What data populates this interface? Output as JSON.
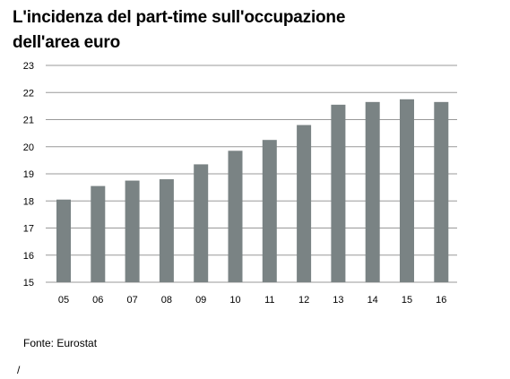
{
  "chart_data": {
    "type": "bar",
    "title_lines": [
      "L'incidenza del part-time sull'occupazione",
      "dell'area euro"
    ],
    "categories": [
      "05",
      "06",
      "07",
      "08",
      "09",
      "10",
      "11",
      "12",
      "13",
      "14",
      "15",
      "16"
    ],
    "values": [
      18.05,
      18.55,
      18.75,
      18.8,
      19.35,
      19.85,
      20.25,
      20.8,
      21.55,
      21.65,
      21.75,
      21.65
    ],
    "ylim": [
      15,
      23
    ],
    "yticks": [
      "15",
      "16",
      "17",
      "18",
      "19",
      "20",
      "21",
      "22",
      "23"
    ],
    "grid": true,
    "bar_color": "#7a8384"
  },
  "source": "Fonte: Eurostat",
  "footnote": "/"
}
